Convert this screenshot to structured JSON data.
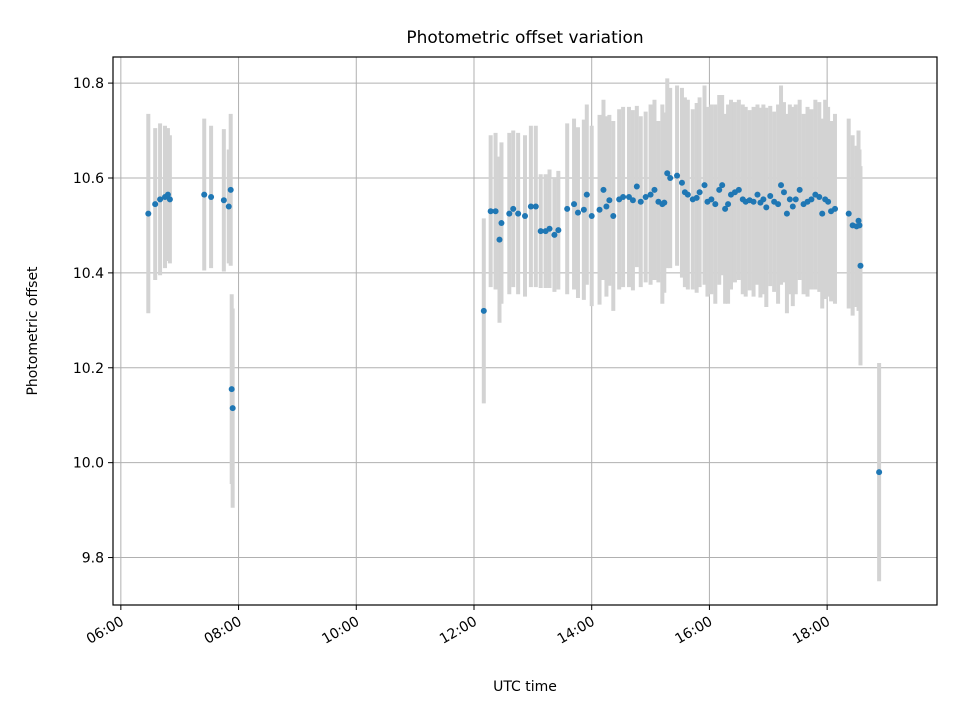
{
  "chart_data": {
    "type": "scatter",
    "title": "Photometric offset variation",
    "xlabel": "UTC time",
    "ylabel": "Photometric offset",
    "xlim": [
      "05:52",
      "19:52"
    ],
    "ylim": [
      9.7,
      10.855
    ],
    "x_ticks": [
      "06:00",
      "08:00",
      "10:00",
      "12:00",
      "14:00",
      "16:00",
      "18:00"
    ],
    "y_ticks": [
      "9.8",
      "10.0",
      "10.2",
      "10.4",
      "10.6",
      "10.8"
    ],
    "grid": true,
    "colors": {
      "points": "#1f77b4",
      "error_bars": "#d3d3d3",
      "grid": "#b0b0b0"
    },
    "series": [
      {
        "x": [
          "06:28",
          "06:35",
          "06:40",
          "06:45",
          "06:48",
          "06:50",
          "07:25",
          "07:32",
          "07:45",
          "07:50",
          "07:52",
          "07:53",
          "07:54",
          "12:10",
          "12:17",
          "12:22",
          "12:26",
          "12:28",
          "12:36",
          "12:40",
          "12:45",
          "12:52",
          "12:58",
          "13:03",
          "13:08",
          "13:13",
          "13:17",
          "13:22",
          "13:26",
          "13:35",
          "13:42",
          "13:46",
          "13:52",
          "13:55",
          "14:00",
          "14:08",
          "14:12",
          "14:15",
          "14:18",
          "14:22",
          "14:28",
          "14:32",
          "14:38",
          "14:42",
          "14:46",
          "14:50",
          "14:55",
          "15:00",
          "15:04",
          "15:08",
          "15:12",
          "15:14",
          "15:17",
          "15:20",
          "15:27",
          "15:32",
          "15:35",
          "15:38",
          "15:43",
          "15:47",
          "15:50",
          "15:55",
          "15:58",
          "16:02",
          "16:06",
          "16:10",
          "16:13",
          "16:16",
          "16:19",
          "16:22",
          "16:26",
          "16:30",
          "16:34",
          "16:37",
          "16:41",
          "16:45",
          "16:49",
          "16:52",
          "16:55",
          "16:58",
          "17:02",
          "17:06",
          "17:10",
          "17:13",
          "17:16",
          "17:19",
          "17:22",
          "17:25",
          "17:28",
          "17:32",
          "17:36",
          "17:40",
          "17:44",
          "17:48",
          "17:52",
          "17:55",
          "17:58",
          "18:01",
          "18:04",
          "18:08",
          "18:22",
          "18:26",
          "18:30",
          "18:32",
          "18:33",
          "18:34",
          "18:53"
        ],
        "y": [
          10.525,
          10.545,
          10.555,
          10.56,
          10.565,
          10.555,
          10.565,
          10.56,
          10.553,
          10.54,
          10.575,
          10.155,
          10.115,
          10.32,
          10.53,
          10.53,
          10.47,
          10.505,
          10.525,
          10.535,
          10.525,
          10.52,
          10.54,
          10.54,
          10.488,
          10.488,
          10.493,
          10.48,
          10.49,
          10.535,
          10.545,
          10.527,
          10.533,
          10.565,
          10.52,
          10.533,
          10.575,
          10.54,
          10.553,
          10.52,
          10.555,
          10.56,
          10.56,
          10.553,
          10.582,
          10.55,
          10.56,
          10.565,
          10.575,
          10.55,
          10.545,
          10.548,
          10.61,
          10.6,
          10.605,
          10.59,
          10.57,
          10.565,
          10.555,
          10.558,
          10.57,
          10.585,
          10.55,
          10.555,
          10.545,
          10.575,
          10.585,
          10.535,
          10.545,
          10.565,
          10.57,
          10.575,
          10.555,
          10.55,
          10.553,
          10.55,
          10.565,
          10.548,
          10.555,
          10.538,
          10.562,
          10.55,
          10.545,
          10.585,
          10.57,
          10.525,
          10.555,
          10.54,
          10.555,
          10.575,
          10.545,
          10.55,
          10.555,
          10.565,
          10.56,
          10.525,
          10.555,
          10.55,
          10.53,
          10.535,
          10.525,
          10.5,
          10.498,
          10.51,
          10.5,
          10.415,
          9.98
        ],
        "yerr": [
          0.21,
          0.16,
          0.16,
          0.15,
          0.14,
          0.135,
          0.16,
          0.15,
          0.15,
          0.12,
          0.16,
          0.2,
          0.21,
          0.195,
          0.16,
          0.165,
          0.175,
          0.17,
          0.17,
          0.165,
          0.17,
          0.17,
          0.17,
          0.17,
          0.12,
          0.12,
          0.125,
          0.12,
          0.125,
          0.18,
          0.18,
          0.18,
          0.19,
          0.19,
          0.19,
          0.2,
          0.19,
          0.19,
          0.18,
          0.2,
          0.19,
          0.19,
          0.19,
          0.19,
          0.17,
          0.18,
          0.18,
          0.19,
          0.19,
          0.17,
          0.21,
          0.19,
          0.2,
          0.19,
          0.19,
          0.2,
          0.2,
          0.2,
          0.19,
          0.2,
          0.2,
          0.21,
          0.2,
          0.2,
          0.21,
          0.2,
          0.19,
          0.2,
          0.21,
          0.2,
          0.19,
          0.19,
          0.2,
          0.2,
          0.19,
          0.2,
          0.19,
          0.2,
          0.2,
          0.21,
          0.19,
          0.19,
          0.21,
          0.21,
          0.19,
          0.21,
          0.2,
          0.21,
          0.2,
          0.19,
          0.19,
          0.2,
          0.19,
          0.2,
          0.2,
          0.2,
          0.21,
          0.2,
          0.19,
          0.2,
          0.2,
          0.19,
          0.17,
          0.19,
          0.16,
          0.21,
          0.23
        ]
      }
    ]
  }
}
